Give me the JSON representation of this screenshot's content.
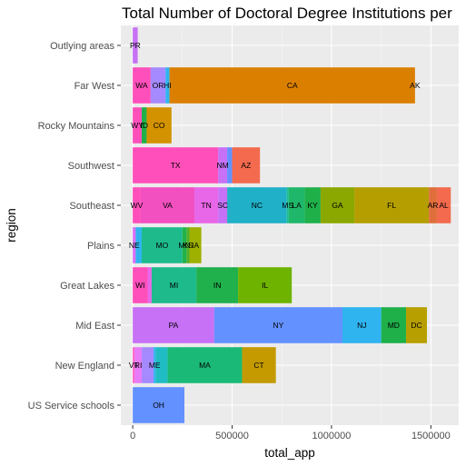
{
  "chart_data": {
    "type": "bar",
    "orientation": "horizontal",
    "stacked": true,
    "title": "Total Number of Doctoral Degree Institutions per",
    "xlabel": "total_app",
    "ylabel": "region",
    "xlim": [
      -60000,
      1640000
    ],
    "xticks": [
      0,
      500000,
      1000000,
      1500000
    ],
    "xtick_labels": [
      "0",
      "500000",
      "1000000",
      "1500000"
    ],
    "grid": true,
    "legend": "none",
    "categories": [
      "US Service schools",
      "New England",
      "Mid East",
      "Great Lakes",
      "Plains",
      "Southeast",
      "Southwest",
      "Rocky Mountains",
      "Far West",
      "Outlying areas"
    ],
    "bars": [
      {
        "region": "US Service schools",
        "segments": [
          {
            "label": "OH",
            "value": 260000,
            "color": "#6391ff"
          }
        ]
      },
      {
        "region": "New England",
        "segments": [
          {
            "label": "VT",
            "value": 10000,
            "color": "#ff61c9"
          },
          {
            "label": "RI",
            "value": 35000,
            "color": "#e87bf7"
          },
          {
            "label": "",
            "value": 60000,
            "color": "#a58aff"
          },
          {
            "label": "ME",
            "value": 10000,
            "color": "#2fb4f0"
          },
          {
            "label": "",
            "value": 60000,
            "color": "#20bcc4"
          },
          {
            "label": "MA",
            "value": 375000,
            "color": "#1bb978"
          },
          {
            "label": "CT",
            "value": 170000,
            "color": "#c49a00"
          }
        ]
      },
      {
        "region": "Mid East",
        "segments": [
          {
            "label": "PA",
            "value": 410000,
            "color": "#c671f6"
          },
          {
            "label": "NY",
            "value": 645000,
            "color": "#6391ff"
          },
          {
            "label": "NJ",
            "value": 195000,
            "color": "#2fb4f0"
          },
          {
            "label": "MD",
            "value": 125000,
            "color": "#1fb04a"
          },
          {
            "label": "DC",
            "value": 105000,
            "color": "#b79f00"
          }
        ]
      },
      {
        "region": "Great Lakes",
        "segments": [
          {
            "label": "WI",
            "value": 75000,
            "color": "#ff4fbb"
          },
          {
            "label": "",
            "value": 20000,
            "color": "#e866e8"
          },
          {
            "label": "MI",
            "value": 225000,
            "color": "#1eba8c"
          },
          {
            "label": "IN",
            "value": 210000,
            "color": "#20b04c"
          },
          {
            "label": "IL",
            "value": 270000,
            "color": "#6eb300"
          }
        ]
      },
      {
        "region": "Plains",
        "segments": [
          {
            "label": "NE",
            "value": 15000,
            "color": "#d870f4"
          },
          {
            "label": "",
            "value": 30000,
            "color": "#2fb4f0"
          },
          {
            "label": "MO",
            "value": 205000,
            "color": "#1eba8c"
          },
          {
            "label": "MN",
            "value": 20000,
            "color": "#22b24a"
          },
          {
            "label": "KS",
            "value": 15000,
            "color": "#4fb02c"
          },
          {
            "label": "IA",
            "value": 60000,
            "color": "#9eb000"
          }
        ]
      },
      {
        "region": "Southeast",
        "segments": [
          {
            "label": "WV",
            "value": 40000,
            "color": "#ff4fbb"
          },
          {
            "label": "VA",
            "value": 270000,
            "color": "#f24fc0"
          },
          {
            "label": "TN",
            "value": 120000,
            "color": "#e866e8"
          },
          {
            "label": "SC",
            "value": 45000,
            "color": "#c671f6"
          },
          {
            "label": "NC",
            "value": 300000,
            "color": "#20b0c8"
          },
          {
            "label": "MS",
            "value": 10000,
            "color": "#1fbf95"
          },
          {
            "label": "LA",
            "value": 80000,
            "color": "#1fb86a"
          },
          {
            "label": "KY",
            "value": 80000,
            "color": "#1fb04a"
          },
          {
            "label": "GA",
            "value": 170000,
            "color": "#8aa800"
          },
          {
            "label": "FL",
            "value": 375000,
            "color": "#b49e00"
          },
          {
            "label": "AR",
            "value": 40000,
            "color": "#e06e3a"
          },
          {
            "label": "AL",
            "value": 70000,
            "color": "#f36a4e"
          }
        ]
      },
      {
        "region": "Southwest",
        "segments": [
          {
            "label": "TX",
            "value": 430000,
            "color": "#ff4fbb"
          },
          {
            "label": "NM",
            "value": 45000,
            "color": "#c671f6"
          },
          {
            "label": "",
            "value": 25000,
            "color": "#6391ff"
          },
          {
            "label": "AZ",
            "value": 140000,
            "color": "#f36a4e"
          }
        ]
      },
      {
        "region": "Rocky Mountains",
        "segments": [
          {
            "label": "WY",
            "value": 45000,
            "color": "#ff4fbb"
          },
          {
            "label": "ID",
            "value": 25000,
            "color": "#1fb04a"
          },
          {
            "label": "CO",
            "value": 125000,
            "color": "#d39200"
          }
        ]
      },
      {
        "region": "Far West",
        "segments": [
          {
            "label": "WA",
            "value": 90000,
            "color": "#ff4fbb"
          },
          {
            "label": "OR",
            "value": 75000,
            "color": "#a58aff"
          },
          {
            "label": "HI",
            "value": 20000,
            "color": "#2fb4f0"
          },
          {
            "label": "CA",
            "value": 1235000,
            "color": "#db7f00"
          },
          {
            "label": "AK",
            "value": 0,
            "color": "#f8766d"
          }
        ]
      },
      {
        "region": "Outlying areas",
        "segments": [
          {
            "label": "PR",
            "value": 25000,
            "color": "#c671f6"
          }
        ]
      }
    ]
  }
}
